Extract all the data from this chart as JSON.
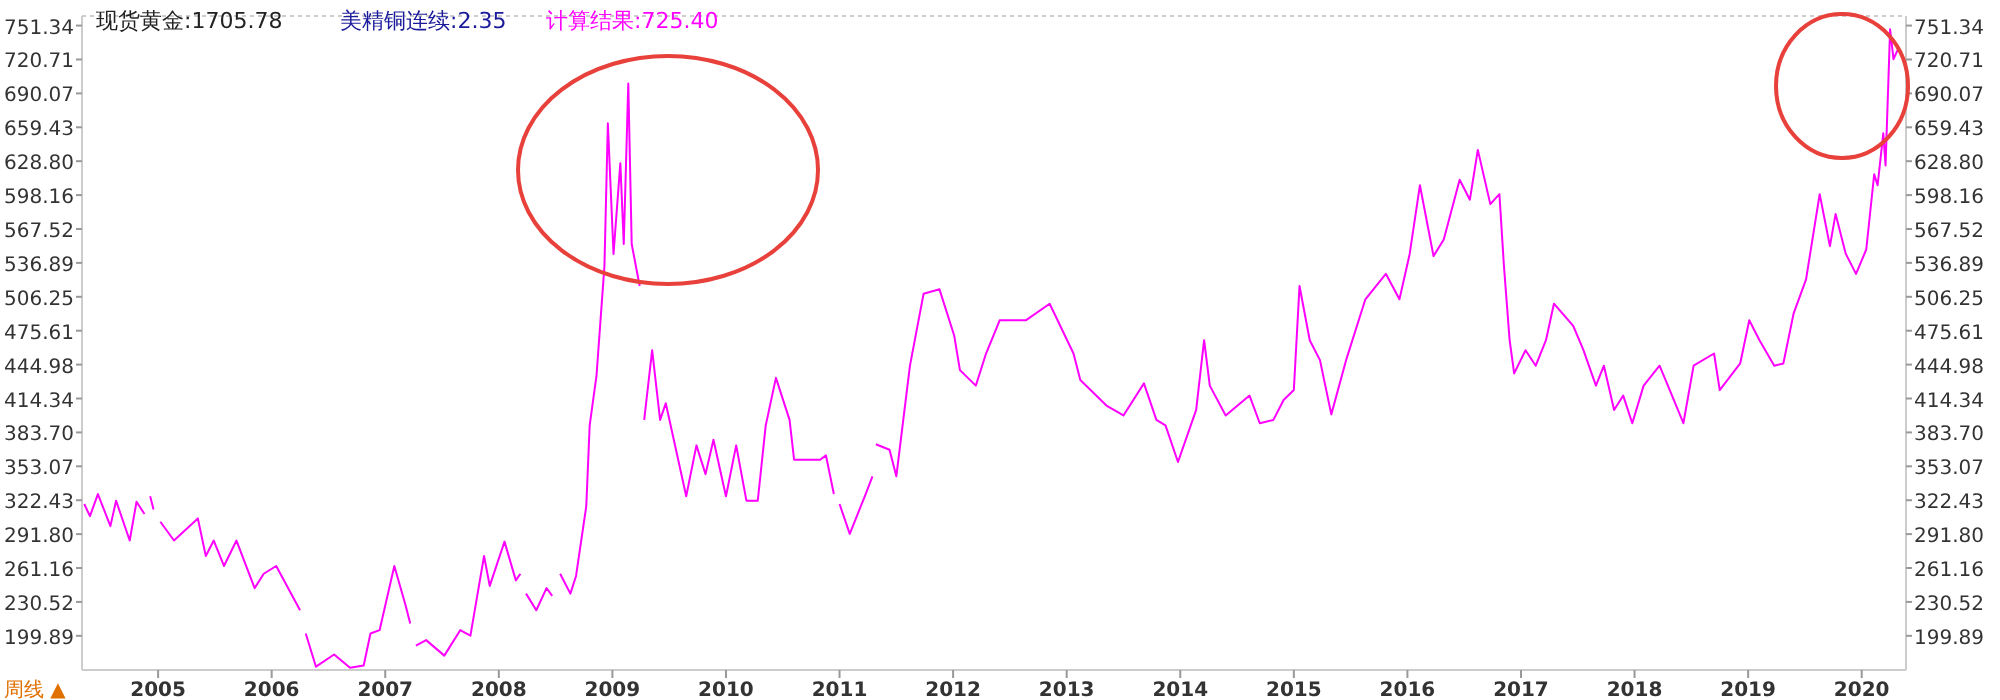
{
  "chart_data": {
    "type": "line",
    "title": "现货黄金:1705.78",
    "subtitle": "美精铜连续:2.35",
    "annotations": [
      "周线 ▲"
    ],
    "legend": "top left",
    "xlim": [
      2004.33,
      2020.39
    ],
    "xticks": [
      2005,
      2006,
      2007,
      2008,
      2009,
      2010,
      2011,
      2012,
      2013,
      2014,
      2015,
      2016,
      2017,
      2018,
      2019,
      2020
    ],
    "ylim": [
      169,
      760
    ],
    "yticks": [
      199.89,
      230.52,
      261.16,
      {
        "value": 291.8,
        "label": "291.80"
      },
      322.43,
      353.07,
      {
        "value": 383.7,
        "label": "383.70"
      },
      414.34,
      444.98,
      475.61,
      506.25,
      536.89,
      567.52,
      598.16,
      {
        "value": 628.8,
        "label": "628.80"
      },
      659.43,
      690.07,
      720.71,
      751.34
    ],
    "y2lim": [
      169,
      760
    ],
    "y2ticks": [
      199.89,
      230.52,
      261.16,
      {
        "value": 291.8,
        "label": "291.80"
      },
      322.43,
      353.07,
      {
        "value": 383.7,
        "label": "383.70"
      },
      414.34,
      444.98,
      475.61,
      506.25,
      536.89,
      567.52,
      598.16,
      {
        "value": 628.8,
        "label": "628.80"
      },
      659.43,
      690.07,
      720.71,
      751.34
    ],
    "series": [
      {
        "name": "计算结果:725.40",
        "color": "#ff00ff",
        "x": [
          2004.35,
          2004.4,
          2004.47,
          2004.58,
          2004.63,
          2004.75,
          2004.81,
          2004.88,
          2004.9,
          2004.93,
          2004.96,
          2004.99,
          2005.02,
          2005.14,
          2005.35,
          2005.42,
          2005.49,
          2005.58,
          2005.69,
          2005.85,
          2005.93,
          2006.04,
          2006.25,
          2006.27,
          2006.3,
          2006.39,
          2006.55,
          2006.69,
          2006.81,
          2006.87,
          2006.95,
          2007.08,
          2007.18,
          2007.22,
          2007.24,
          2007.27,
          2007.36,
          2007.52,
          2007.66,
          2007.75,
          2007.87,
          2007.92,
          2008.05,
          2008.15,
          2008.19,
          2008.21,
          2008.24,
          2008.33,
          2008.42,
          2008.47,
          2008.5,
          2008.54,
          2008.63,
          2008.68,
          2008.77,
          2008.8,
          2008.86,
          2008.93,
          2008.96,
          2009.01,
          2009.07,
          2009.1,
          2009.14,
          2009.17,
          2009.24,
          2009.26,
          2009.28,
          2009.35,
          2009.42,
          2009.47,
          2009.65,
          2009.74,
          2009.82,
          2009.89,
          2010.0,
          2010.09,
          2010.18,
          2010.28,
          2010.35,
          2010.44,
          2010.56,
          2010.6,
          2010.83,
          2010.88,
          2010.95,
          2010.97,
          2011.0,
          2011.09,
          2011.23,
          2011.29,
          2011.3,
          2011.32,
          2011.44,
          2011.5,
          2011.62,
          2011.74,
          2011.88,
          2012.01,
          2012.06,
          2012.2,
          2012.29,
          2012.41,
          2012.64,
          2012.85,
          2013.06,
          2013.12,
          2013.35,
          2013.5,
          2013.68,
          2013.79,
          2013.87,
          2013.98,
          2014.14,
          2014.21,
          2014.26,
          2014.4,
          2014.61,
          2014.7,
          2014.82,
          2014.91,
          2015.0,
          2015.05,
          2015.14,
          2015.23,
          2015.33,
          2015.46,
          2015.63,
          2015.81,
          2015.93,
          2016.02,
          2016.11,
          2016.23,
          2016.32,
          2016.46,
          2016.55,
          2016.62,
          2016.73,
          2016.81,
          2016.85,
          2016.9,
          2016.94,
          2017.04,
          2017.13,
          2017.22,
          2017.29,
          2017.46,
          2017.55,
          2017.66,
          2017.73,
          2017.82,
          2017.9,
          2017.98,
          2018.08,
          2018.22,
          2018.31,
          2018.43,
          2018.52,
          2018.7,
          2018.75,
          2018.93,
          2019.01,
          2019.1,
          2019.23,
          2019.31,
          2019.4,
          2019.51,
          2019.63,
          2019.72,
          2019.77,
          2019.86,
          2019.95,
          2020.04,
          2020.11,
          2020.14,
          2020.19,
          2020.21,
          2020.25,
          2020.28,
          2020.32
        ],
        "values": [
          319,
          308,
          328,
          299,
          322,
          286,
          321,
          310,
          null,
          326,
          314,
          null,
          303,
          286,
          306,
          272,
          286,
          263,
          286,
          243,
          256,
          263,
          223,
          null,
          202,
          172,
          183,
          171,
          173,
          202,
          205,
          263,
          227,
          211,
          null,
          191,
          196,
          182,
          205,
          200,
          272,
          245,
          285,
          250,
          256,
          null,
          238,
          223,
          243,
          236,
          null,
          256,
          238,
          254,
          317,
          390,
          435,
          534,
          663,
          545,
          627,
          554,
          699,
          554,
          516,
          null,
          395,
          458,
          395,
          410,
          326,
          372,
          346,
          377,
          326,
          372,
          322,
          322,
          390,
          433,
          395,
          359,
          359,
          363,
          328,
          null,
          319,
          292,
          328,
          344,
          null,
          373,
          368,
          344,
          444,
          509,
          513,
          471,
          440,
          426,
          455,
          485,
          485,
          500,
          455,
          431,
          408,
          399,
          428,
          395,
          390,
          357,
          404,
          467,
          426,
          399,
          417,
          392,
          395,
          413,
          422,
          516,
          467,
          449,
          400,
          449,
          504,
          527,
          504,
          545,
          607,
          543,
          558,
          612,
          594,
          639,
          590,
          599,
          534,
          467,
          437,
          458,
          444,
          467,
          500,
          480,
          458,
          426,
          444,
          404,
          417,
          392,
          426,
          444,
          422,
          392,
          444,
          455,
          422,
          446,
          485,
          467,
          444,
          446,
          491,
          522,
          599,
          552,
          581,
          545,
          527,
          549,
          617,
          607,
          654,
          625,
          748,
          721,
          730
        ]
      }
    ]
  }
}
